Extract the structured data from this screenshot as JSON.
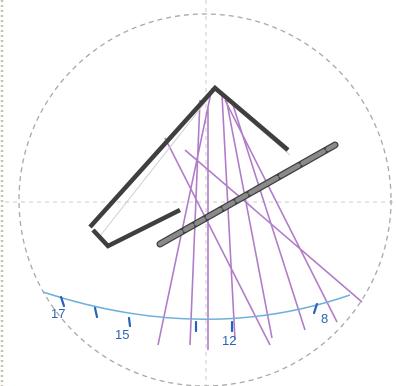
{
  "colors": {
    "background": "#ffffff",
    "guide_circle": "#a8a8a8",
    "crosshair": "#c8c8c8",
    "left_edge": "#c9c1ad",
    "building": "#3f3f3f",
    "gnomon_fill": "#8a8a8a",
    "sun_rays": "#b07cc8",
    "sun_path": "#6fb0dd",
    "hour_ticks": "#2a62b8",
    "hour_labels": "#2a62b8",
    "projection_line": "#cfcfcf"
  },
  "hour_labels": {
    "h17": "17",
    "h15": "15",
    "h12": "12",
    "h8": "8"
  }
}
